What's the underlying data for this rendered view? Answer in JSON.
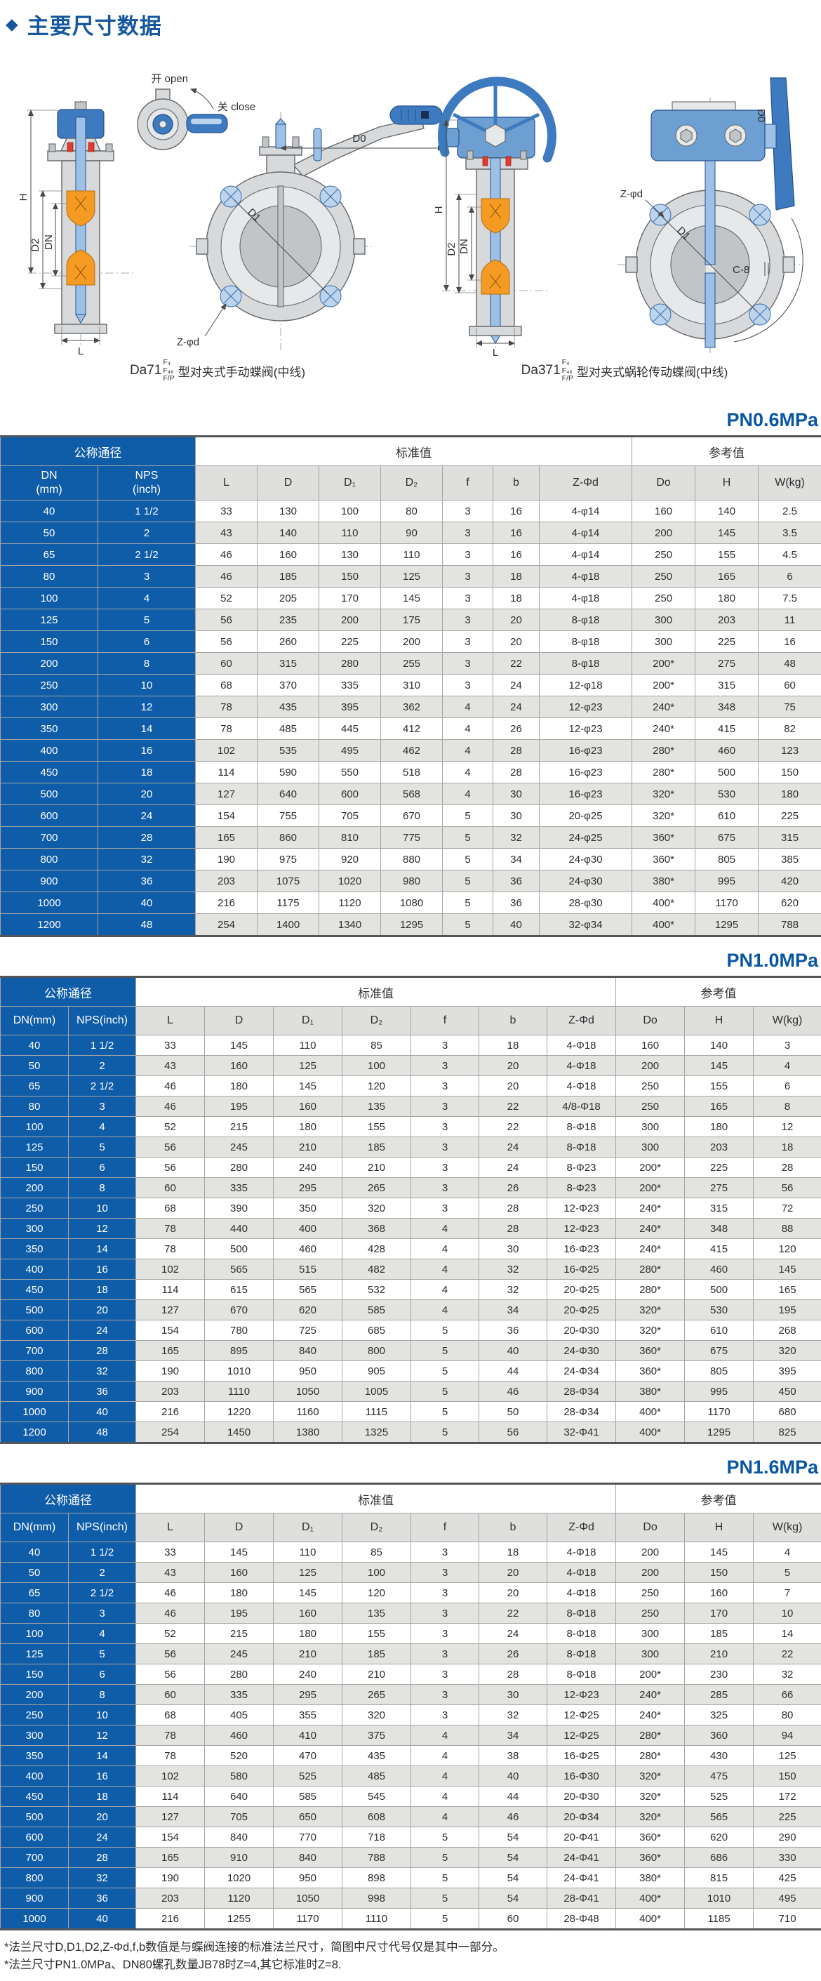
{
  "page": {
    "bullet": "◆",
    "title": "主要尺寸数据"
  },
  "drawings": {
    "left": {
      "model": "Da71",
      "frac_top": "F₄",
      "frac_mid": "F₄₆",
      "frac_bot": "F/P",
      "caption": "型对夹式手动蝶阀(中线)",
      "labels": {
        "open": "开 open",
        "close": "关 close",
        "d0": "D0",
        "d1": "D1",
        "zd": "Z-φd",
        "h": "H",
        "d2": "D2",
        "dn": "DN",
        "l": "L"
      }
    },
    "right": {
      "model": "Da371",
      "frac_top": "F₄",
      "frac_mid": "F₄₆",
      "frac_bot": "F/P",
      "caption": "型对夹式蜗轮传动蝶阀(中线)",
      "labels": {
        "d0": "D0",
        "d1": "D1",
        "zd": "Z-φd",
        "c8": "C-8",
        "h": "H",
        "d2": "D2",
        "dn": "DN",
        "l": "L"
      }
    }
  },
  "table_common": {
    "group_headers": [
      "公称通径",
      "标准值",
      "参考值"
    ],
    "col_headers": [
      "L",
      "D",
      "D₁",
      "D₂",
      "f",
      "b",
      "Z-Φd",
      "Do",
      "H",
      "W(kg)"
    ]
  },
  "tables": [
    {
      "title": "PN0.6MPa",
      "dn_header": "DN\n(mm)",
      "nps_header": "NPS\n(inch)",
      "rows": [
        [
          "40",
          "1 1/2",
          "33",
          "130",
          "100",
          "80",
          "3",
          "16",
          "4-φ14",
          "160",
          "140",
          "2.5"
        ],
        [
          "50",
          "2",
          "43",
          "140",
          "110",
          "90",
          "3",
          "16",
          "4-φ14",
          "200",
          "145",
          "3.5"
        ],
        [
          "65",
          "2 1/2",
          "46",
          "160",
          "130",
          "110",
          "3",
          "16",
          "4-φ14",
          "250",
          "155",
          "4.5"
        ],
        [
          "80",
          "3",
          "46",
          "185",
          "150",
          "125",
          "3",
          "18",
          "4-φ18",
          "250",
          "165",
          "6"
        ],
        [
          "100",
          "4",
          "52",
          "205",
          "170",
          "145",
          "3",
          "18",
          "4-φ18",
          "250",
          "180",
          "7.5"
        ],
        [
          "125",
          "5",
          "56",
          "235",
          "200",
          "175",
          "3",
          "20",
          "8-φ18",
          "300",
          "203",
          "11"
        ],
        [
          "150",
          "6",
          "56",
          "260",
          "225",
          "200",
          "3",
          "20",
          "8-φ18",
          "300",
          "225",
          "16"
        ],
        [
          "200",
          "8",
          "60",
          "315",
          "280",
          "255",
          "3",
          "22",
          "8-φ18",
          "200*",
          "275",
          "48"
        ],
        [
          "250",
          "10",
          "68",
          "370",
          "335",
          "310",
          "3",
          "24",
          "12-φ18",
          "200*",
          "315",
          "60"
        ],
        [
          "300",
          "12",
          "78",
          "435",
          "395",
          "362",
          "4",
          "24",
          "12-φ23",
          "240*",
          "348",
          "75"
        ],
        [
          "350",
          "14",
          "78",
          "485",
          "445",
          "412",
          "4",
          "26",
          "12-φ23",
          "240*",
          "415",
          "82"
        ],
        [
          "400",
          "16",
          "102",
          "535",
          "495",
          "462",
          "4",
          "28",
          "16-φ23",
          "280*",
          "460",
          "123"
        ],
        [
          "450",
          "18",
          "114",
          "590",
          "550",
          "518",
          "4",
          "28",
          "16-φ23",
          "280*",
          "500",
          "150"
        ],
        [
          "500",
          "20",
          "127",
          "640",
          "600",
          "568",
          "4",
          "30",
          "16-φ23",
          "320*",
          "530",
          "180"
        ],
        [
          "600",
          "24",
          "154",
          "755",
          "705",
          "670",
          "5",
          "30",
          "20-φ25",
          "320*",
          "610",
          "225"
        ],
        [
          "700",
          "28",
          "165",
          "860",
          "810",
          "775",
          "5",
          "32",
          "24-φ25",
          "360*",
          "675",
          "315"
        ],
        [
          "800",
          "32",
          "190",
          "975",
          "920",
          "880",
          "5",
          "34",
          "24-φ30",
          "360*",
          "805",
          "385"
        ],
        [
          "900",
          "36",
          "203",
          "1075",
          "1020",
          "980",
          "5",
          "36",
          "24-φ30",
          "380*",
          "995",
          "420"
        ],
        [
          "1000",
          "40",
          "216",
          "1175",
          "1120",
          "1080",
          "5",
          "36",
          "28-φ30",
          "400*",
          "1170",
          "620"
        ],
        [
          "1200",
          "48",
          "254",
          "1400",
          "1340",
          "1295",
          "5",
          "40",
          "32-φ34",
          "400*",
          "1295",
          "788"
        ]
      ]
    },
    {
      "title": "PN1.0MPa",
      "dn_header": "DN(mm)",
      "nps_header": "NPS(inch)",
      "rows": [
        [
          "40",
          "1 1/2",
          "33",
          "145",
          "110",
          "85",
          "3",
          "18",
          "4-Φ18",
          "160",
          "140",
          "3"
        ],
        [
          "50",
          "2",
          "43",
          "160",
          "125",
          "100",
          "3",
          "20",
          "4-Φ18",
          "200",
          "145",
          "4"
        ],
        [
          "65",
          "2 1/2",
          "46",
          "180",
          "145",
          "120",
          "3",
          "20",
          "4-Φ18",
          "250",
          "155",
          "6"
        ],
        [
          "80",
          "3",
          "46",
          "195",
          "160",
          "135",
          "3",
          "22",
          "4/8-Φ18",
          "250",
          "165",
          "8"
        ],
        [
          "100",
          "4",
          "52",
          "215",
          "180",
          "155",
          "3",
          "22",
          "8-Φ18",
          "300",
          "180",
          "12"
        ],
        [
          "125",
          "5",
          "56",
          "245",
          "210",
          "185",
          "3",
          "24",
          "8-Φ18",
          "300",
          "203",
          "18"
        ],
        [
          "150",
          "6",
          "56",
          "280",
          "240",
          "210",
          "3",
          "24",
          "8-Φ23",
          "200*",
          "225",
          "28"
        ],
        [
          "200",
          "8",
          "60",
          "335",
          "295",
          "265",
          "3",
          "26",
          "8-Φ23",
          "200*",
          "275",
          "56"
        ],
        [
          "250",
          "10",
          "68",
          "390",
          "350",
          "320",
          "3",
          "28",
          "12-Φ23",
          "240*",
          "315",
          "72"
        ],
        [
          "300",
          "12",
          "78",
          "440",
          "400",
          "368",
          "4",
          "28",
          "12-Φ23",
          "240*",
          "348",
          "88"
        ],
        [
          "350",
          "14",
          "78",
          "500",
          "460",
          "428",
          "4",
          "30",
          "16-Φ23",
          "240*",
          "415",
          "120"
        ],
        [
          "400",
          "16",
          "102",
          "565",
          "515",
          "482",
          "4",
          "32",
          "16-Φ25",
          "280*",
          "460",
          "145"
        ],
        [
          "450",
          "18",
          "114",
          "615",
          "565",
          "532",
          "4",
          "32",
          "20-Φ25",
          "280*",
          "500",
          "165"
        ],
        [
          "500",
          "20",
          "127",
          "670",
          "620",
          "585",
          "4",
          "34",
          "20-Φ25",
          "320*",
          "530",
          "195"
        ],
        [
          "600",
          "24",
          "154",
          "780",
          "725",
          "685",
          "5",
          "36",
          "20-Φ30",
          "320*",
          "610",
          "268"
        ],
        [
          "700",
          "28",
          "165",
          "895",
          "840",
          "800",
          "5",
          "40",
          "24-Φ30",
          "360*",
          "675",
          "320"
        ],
        [
          "800",
          "32",
          "190",
          "1010",
          "950",
          "905",
          "5",
          "44",
          "24-Φ34",
          "360*",
          "805",
          "395"
        ],
        [
          "900",
          "36",
          "203",
          "1110",
          "1050",
          "1005",
          "5",
          "46",
          "28-Φ34",
          "380*",
          "995",
          "450"
        ],
        [
          "1000",
          "40",
          "216",
          "1220",
          "1160",
          "1115",
          "5",
          "50",
          "28-Φ34",
          "400*",
          "1170",
          "680"
        ],
        [
          "1200",
          "48",
          "254",
          "1450",
          "1380",
          "1325",
          "5",
          "56",
          "32-Φ41",
          "400*",
          "1295",
          "825"
        ]
      ]
    },
    {
      "title": "PN1.6MPa",
      "dn_header": "DN(mm)",
      "nps_header": "NPS(inch)",
      "rows": [
        [
          "40",
          "1 1/2",
          "33",
          "145",
          "110",
          "85",
          "3",
          "18",
          "4-Φ18",
          "200",
          "145",
          "4"
        ],
        [
          "50",
          "2",
          "43",
          "160",
          "125",
          "100",
          "3",
          "20",
          "4-Φ18",
          "200",
          "150",
          "5"
        ],
        [
          "65",
          "2 1/2",
          "46",
          "180",
          "145",
          "120",
          "3",
          "20",
          "4-Φ18",
          "250",
          "160",
          "7"
        ],
        [
          "80",
          "3",
          "46",
          "195",
          "160",
          "135",
          "3",
          "22",
          "8-Φ18",
          "250",
          "170",
          "10"
        ],
        [
          "100",
          "4",
          "52",
          "215",
          "180",
          "155",
          "3",
          "24",
          "8-Φ18",
          "300",
          "185",
          "14"
        ],
        [
          "125",
          "5",
          "56",
          "245",
          "210",
          "185",
          "3",
          "26",
          "8-Φ18",
          "300",
          "210",
          "22"
        ],
        [
          "150",
          "6",
          "56",
          "280",
          "240",
          "210",
          "3",
          "28",
          "8-Φ18",
          "200*",
          "230",
          "32"
        ],
        [
          "200",
          "8",
          "60",
          "335",
          "295",
          "265",
          "3",
          "30",
          "12-Φ23",
          "240*",
          "285",
          "66"
        ],
        [
          "250",
          "10",
          "68",
          "405",
          "355",
          "320",
          "3",
          "32",
          "12-Φ25",
          "240*",
          "325",
          "80"
        ],
        [
          "300",
          "12",
          "78",
          "460",
          "410",
          "375",
          "4",
          "34",
          "12-Φ25",
          "280*",
          "360",
          "94"
        ],
        [
          "350",
          "14",
          "78",
          "520",
          "470",
          "435",
          "4",
          "38",
          "16-Φ25",
          "280*",
          "430",
          "125"
        ],
        [
          "400",
          "16",
          "102",
          "580",
          "525",
          "485",
          "4",
          "40",
          "16-Φ30",
          "320*",
          "475",
          "150"
        ],
        [
          "450",
          "18",
          "114",
          "640",
          "585",
          "545",
          "4",
          "44",
          "20-Φ30",
          "320*",
          "525",
          "172"
        ],
        [
          "500",
          "20",
          "127",
          "705",
          "650",
          "608",
          "4",
          "46",
          "20-Φ34",
          "320*",
          "565",
          "225"
        ],
        [
          "600",
          "24",
          "154",
          "840",
          "770",
          "718",
          "5",
          "54",
          "20-Φ41",
          "360*",
          "620",
          "290"
        ],
        [
          "700",
          "28",
          "165",
          "910",
          "840",
          "788",
          "5",
          "54",
          "24-Φ41",
          "360*",
          "686",
          "330"
        ],
        [
          "800",
          "32",
          "190",
          "1020",
          "950",
          "898",
          "5",
          "54",
          "24-Φ41",
          "380*",
          "815",
          "425"
        ],
        [
          "900",
          "36",
          "203",
          "1120",
          "1050",
          "998",
          "5",
          "54",
          "28-Φ41",
          "400*",
          "1010",
          "495"
        ],
        [
          "1000",
          "40",
          "216",
          "1255",
          "1170",
          "1110",
          "5",
          "60",
          "28-Φ48",
          "400*",
          "1185",
          "710"
        ]
      ]
    }
  ],
  "notes": [
    "*法兰尺寸D,D1,D2,Z-Φd,f,b数值是与蝶阀连接的标准法兰尺寸，简图中尺寸代号仅是其中一部分。",
    "*法兰尺寸PN1.0MPa、DN80螺孔数量JB78时Z=4,其它标准时Z=8."
  ],
  "colors": {
    "brand_blue": "#0f5ca8",
    "title_blue": "#0a56a6",
    "row_alt": "#e3e4e0",
    "header_gray": "#dfe0dd"
  }
}
